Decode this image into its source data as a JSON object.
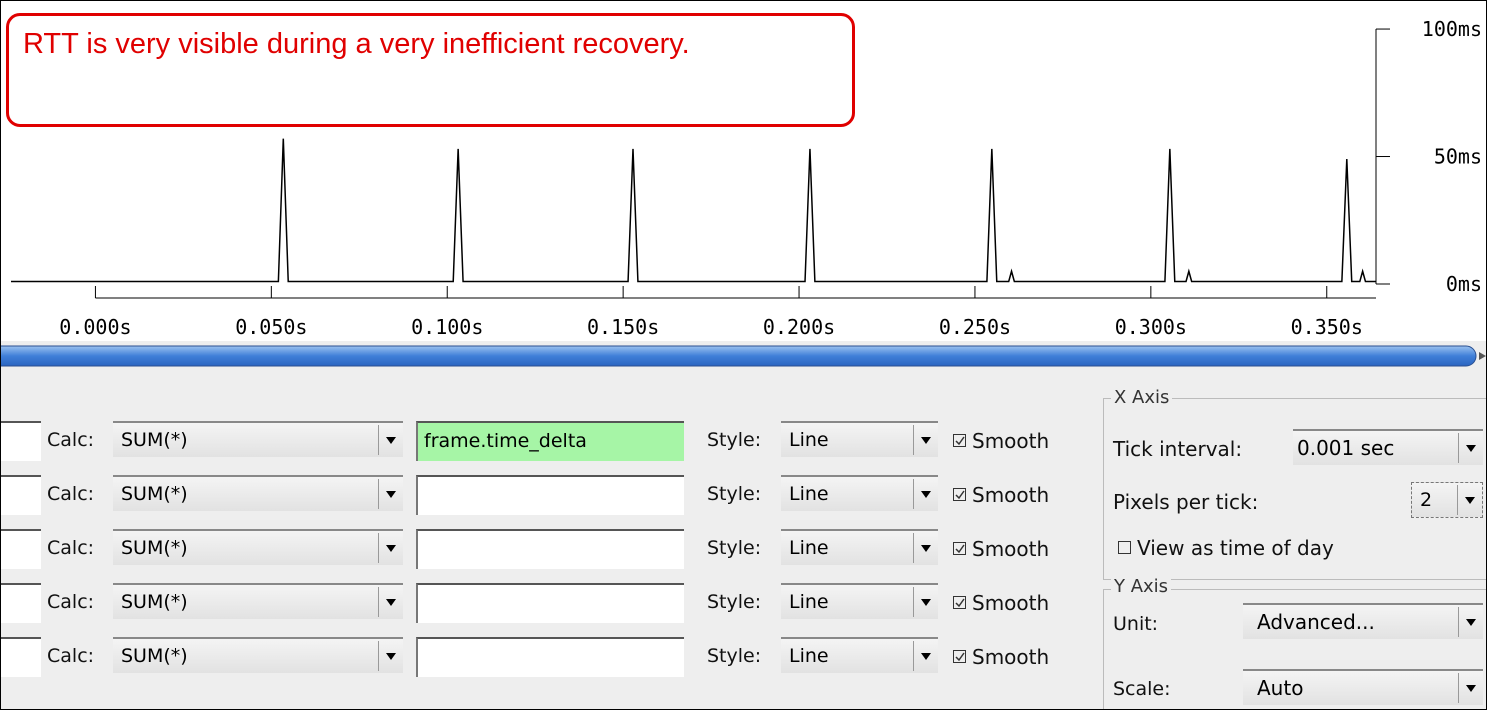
{
  "annotation": "RTT is very visible during a very inefficient recovery.",
  "chart_data": {
    "type": "line",
    "x": [
      -0.024,
      0.052,
      0.0534,
      0.0548,
      0.1017,
      0.1031,
      0.1045,
      0.1514,
      0.1528,
      0.1542,
      0.2017,
      0.2031,
      0.2045,
      0.2534,
      0.2548,
      0.2562,
      0.2596,
      0.2604,
      0.2612,
      0.304,
      0.3054,
      0.3068,
      0.31,
      0.3108,
      0.3116,
      0.3543,
      0.3557,
      0.3571,
      0.3594,
      0.3602,
      0.361,
      0.364
    ],
    "series": [
      {
        "color": "#000000",
        "values": [
          1,
          1,
          57,
          1,
          1,
          53,
          1,
          1,
          53,
          1,
          1,
          53,
          1,
          1,
          53,
          1,
          1,
          5,
          1,
          1,
          53,
          1,
          1,
          5,
          1,
          1,
          49,
          1,
          1,
          5,
          1,
          1
        ]
      }
    ],
    "xlim": [
      -0.024,
      0.364
    ],
    "xticks": [
      {
        "value": 0,
        "label": "0.000s"
      },
      {
        "value": 0.05,
        "label": "0.050s"
      },
      {
        "value": 0.1,
        "label": "0.100s"
      },
      {
        "value": 0.15,
        "label": "0.150s"
      },
      {
        "value": 0.2,
        "label": "0.200s"
      },
      {
        "value": 0.25,
        "label": "0.250s"
      },
      {
        "value": 0.3,
        "label": "0.300s"
      },
      {
        "value": 0.35,
        "label": "0.350s"
      }
    ],
    "ylim": [
      0,
      111
    ],
    "yticks": [
      {
        "value": 0,
        "label": "0ms"
      },
      {
        "value": 50,
        "label": "50ms"
      },
      {
        "value": 100,
        "label": "100ms"
      }
    ]
  },
  "rows": [
    {
      "calc_label": "Calc:",
      "calc": "SUM(*)",
      "filter": "frame.time_delta",
      "style_label": "Style:",
      "style": "Line",
      "smooth": "Smooth"
    },
    {
      "calc_label": "Calc:",
      "calc": "SUM(*)",
      "style_label": "Style:",
      "style": "Line",
      "smooth": "Smooth"
    },
    {
      "calc_label": "Calc:",
      "calc": "SUM(*)",
      "style_label": "Style:",
      "style": "Line",
      "smooth": "Smooth"
    },
    {
      "calc_label": "Calc:",
      "calc": "SUM(*)",
      "style_label": "Style:",
      "style": "Line",
      "smooth": "Smooth"
    },
    {
      "calc_label": "Calc:",
      "calc": "SUM(*)",
      "style_label": "Style:",
      "style": "Line",
      "smooth": "Smooth"
    }
  ],
  "x_axis_panel": {
    "title": "X Axis",
    "tick_interval_label": "Tick interval:",
    "tick_interval": "0.001 sec",
    "pixels_label": "Pixels per tick:",
    "pixels": "2",
    "time_of_day": "View as time of day"
  },
  "y_axis_panel": {
    "title": "Y Axis",
    "unit_label": "Unit:",
    "unit": "Advanced...",
    "scale_label": "Scale:",
    "scale": "Auto"
  }
}
